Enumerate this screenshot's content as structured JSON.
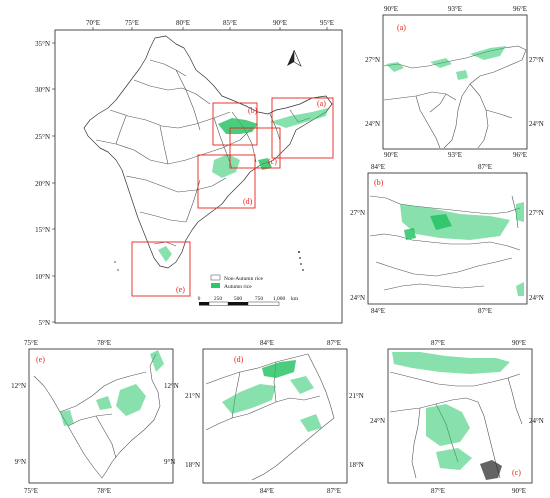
{
  "main_map": {
    "lon_ticks": [
      "70°E",
      "75°E",
      "80°E",
      "85°E",
      "90°E",
      "95°E"
    ],
    "lat_ticks": [
      "35°N",
      "30°N",
      "25°N",
      "20°N",
      "15°N",
      "10°N",
      "5°N"
    ],
    "box_labels": [
      "(a)",
      "(b)",
      "(c)",
      "(d)",
      "(e)"
    ],
    "legend": {
      "non_autumn": "Non-Autumn rice",
      "autumn": "Autumn rice",
      "non_autumn_color": "#ffffff",
      "autumn_color": "#27c96a"
    },
    "scale_labels": [
      "0",
      "250",
      "500",
      "750",
      "1,000",
      "km"
    ],
    "north_arrow": "north-arrow-icon"
  },
  "panels": {
    "a": {
      "letter": "(a)",
      "top_ticks": [
        "90°E",
        "93°E",
        "96°E"
      ],
      "bottom_ticks": [
        "90°E",
        "93°E",
        "96°E"
      ],
      "left_ticks": [
        "27°N",
        "24°N"
      ],
      "right_ticks": [
        "27°N",
        "24°N"
      ]
    },
    "b": {
      "letter": "(b)",
      "top_ticks": [
        "84°E",
        "87°E"
      ],
      "bottom_ticks": [
        "84°E",
        "87°E"
      ],
      "left_ticks": [
        "27°N",
        "24°N"
      ],
      "right_ticks": [
        "27°N",
        "24°N"
      ]
    },
    "e": {
      "letter": "(e)",
      "top_ticks": [
        "75°E",
        "78°E"
      ],
      "bottom_ticks": [
        "75°E",
        "78°E"
      ],
      "left_ticks": [
        "12°N",
        "9°N"
      ],
      "right_ticks": [
        "12°N",
        "9°N"
      ]
    },
    "d": {
      "letter": "(d)",
      "top_ticks": [
        "84°E",
        "87°E"
      ],
      "bottom_ticks": [
        "84°E",
        "87°E"
      ],
      "left_ticks": [
        "21°N",
        "18°N"
      ],
      "right_ticks": [
        "21°N",
        "18°N"
      ]
    },
    "c": {
      "letter": "(c)",
      "top_ticks": [
        "87°E",
        "90°E"
      ],
      "bottom_ticks": [
        "87°E",
        "90°E"
      ],
      "left_ticks": [
        "24°N"
      ],
      "right_ticks": [
        "24°N"
      ]
    }
  }
}
